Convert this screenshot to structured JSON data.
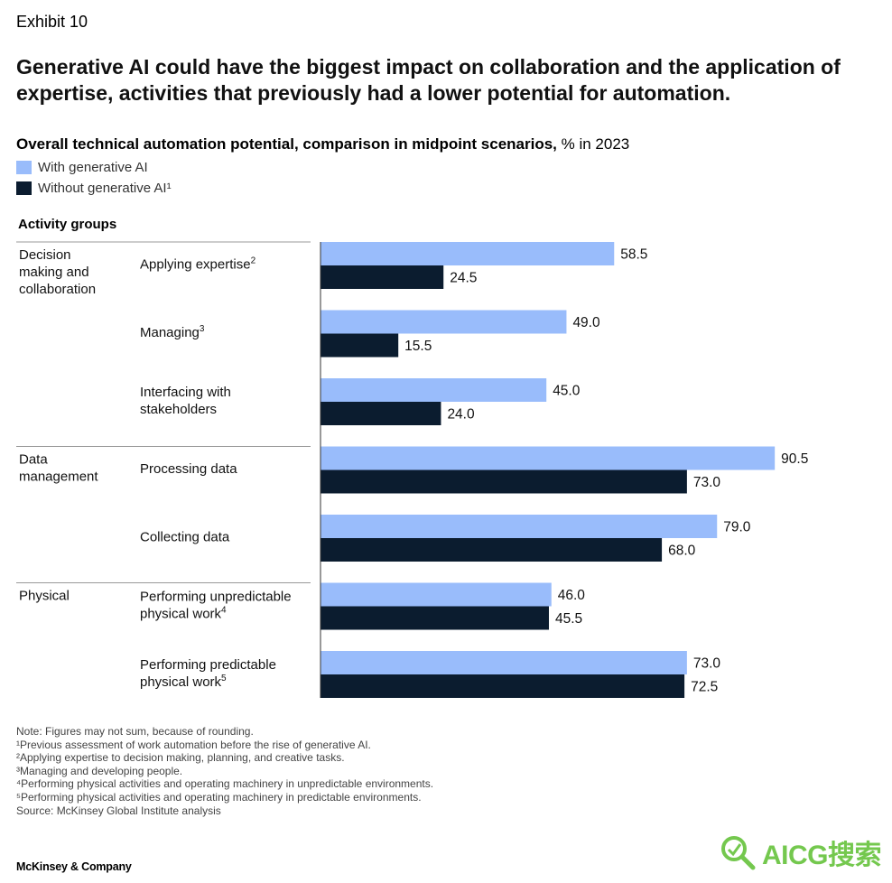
{
  "exhibit_label": "Exhibit 10",
  "headline": "Generative AI could have the biggest impact on collaboration and the application of expertise, activities that previously had a lower potential for automation.",
  "subtitle": {
    "main": "Overall technical automation potential, comparison in midpoint scenarios,",
    "unit": " % in 2023"
  },
  "legend": {
    "with": {
      "label": "With generative AI",
      "color": "#99bcfb"
    },
    "without": {
      "label": "Without generative AI¹",
      "color": "#0b1c2f"
    }
  },
  "column_header": "Activity groups",
  "chart_data": {
    "type": "bar",
    "orientation": "horizontal",
    "xlim": [
      0,
      100
    ],
    "groups": [
      {
        "label": [
          "Decision",
          "making and",
          "collaboration"
        ],
        "categories": [
          0,
          1,
          2
        ]
      },
      {
        "label": [
          "Data",
          "management"
        ],
        "categories": [
          3,
          4
        ]
      },
      {
        "label": [
          "Physical"
        ],
        "categories": [
          5,
          6
        ]
      }
    ],
    "categories": [
      {
        "label": [
          "Applying expertise"
        ],
        "sup": "2"
      },
      {
        "label": [
          "Managing"
        ],
        "sup": "3"
      },
      {
        "label": [
          "Interfacing with",
          "stakeholders"
        ],
        "sup": ""
      },
      {
        "label": [
          "Processing data"
        ],
        "sup": ""
      },
      {
        "label": [
          "Collecting data"
        ],
        "sup": ""
      },
      {
        "label": [
          "Performing unpredictable",
          "physical work"
        ],
        "sup": "4"
      },
      {
        "label": [
          "Performing predictable",
          "physical work"
        ],
        "sup": "5"
      }
    ],
    "series": [
      {
        "name": "With generative AI",
        "color": "#99bcfb",
        "values": [
          58.5,
          49.0,
          45.0,
          90.5,
          79.0,
          46.0,
          73.0
        ],
        "labels": [
          "58.5",
          "49.0",
          "45.0",
          "90.5",
          "79.0",
          "46.0",
          "73.0"
        ]
      },
      {
        "name": "Without generative AI",
        "color": "#0b1c2f",
        "values": [
          24.5,
          15.5,
          24.0,
          73.0,
          68.0,
          45.5,
          72.5
        ],
        "labels": [
          "24.5",
          "15.5",
          "24.0",
          "73.0",
          "68.0",
          "45.5",
          "72.5"
        ]
      }
    ]
  },
  "notes": [
    " Note: Figures may not sum, because of rounding.",
    "¹Previous assessment of work automation before the rise of generative AI.",
    "²Applying expertise to decision making, planning, and creative tasks.",
    "³Managing and developing people.",
    "⁴Performing physical activities and operating machinery in unpredictable environments.",
    "⁵Performing physical activities and operating machinery in predictable environments.",
    " Source: McKinsey Global Institute analysis"
  ],
  "brand": "McKinsey & Company",
  "watermark": "AICG搜索"
}
